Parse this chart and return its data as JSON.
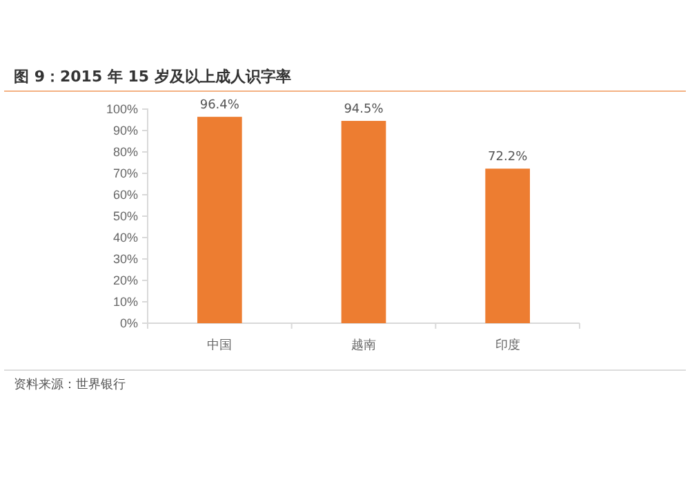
{
  "chart_data": {
    "type": "bar",
    "title": "图 9：2015 年 15 岁及以上成人识字率",
    "categories": [
      "中国",
      "越南",
      "印度"
    ],
    "values": [
      96.4,
      94.5,
      72.2
    ],
    "color": "#ed7d31",
    "value_labels": [
      "96.4%",
      "94.5%",
      "72.2%"
    ],
    "ylim": [
      0,
      100
    ],
    "yticks": [
      {
        "value": 0,
        "label": "0%"
      },
      {
        "value": 10,
        "label": "10%"
      },
      {
        "value": 20,
        "label": "20%"
      },
      {
        "value": 30,
        "label": "30%"
      },
      {
        "value": 40,
        "label": "40%"
      },
      {
        "value": 50,
        "label": "50%"
      },
      {
        "value": 60,
        "label": "60%"
      },
      {
        "value": 70,
        "label": "70%"
      },
      {
        "value": 80,
        "label": "80%"
      },
      {
        "value": 90,
        "label": "90%"
      },
      {
        "value": 100,
        "label": "100%"
      }
    ],
    "annotations": [
      "资料来源：世界银行"
    ]
  }
}
